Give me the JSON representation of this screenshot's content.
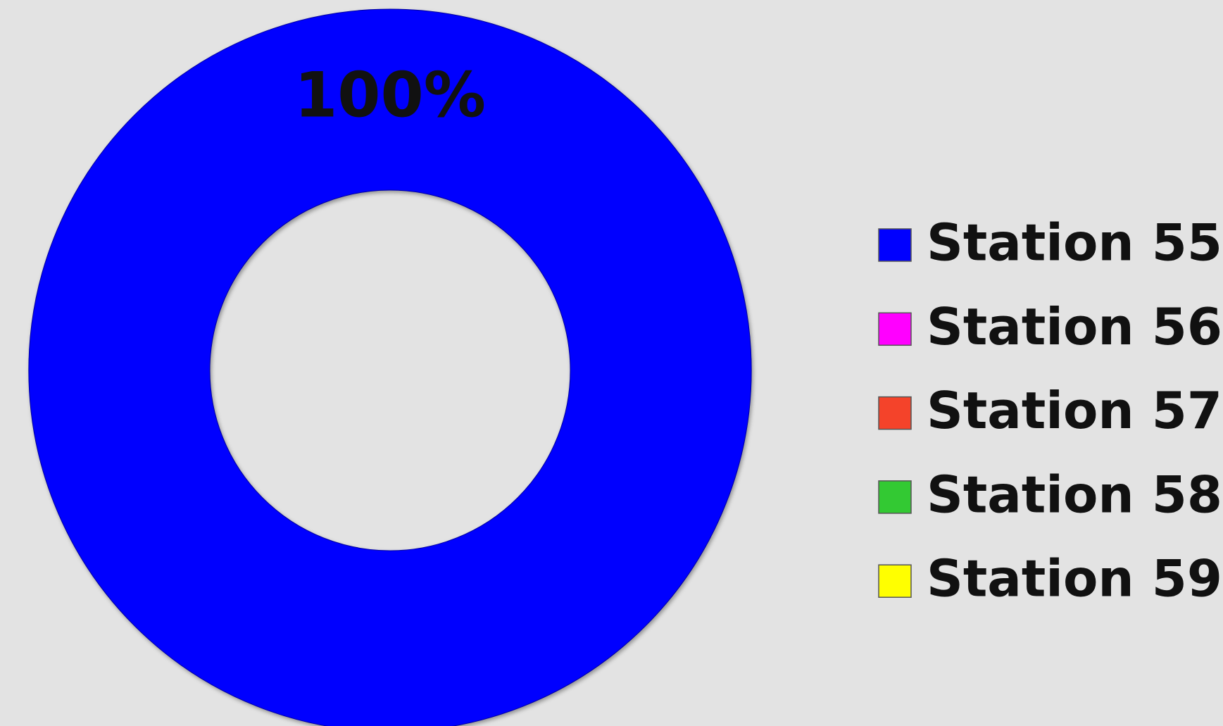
{
  "chart_data": {
    "type": "donut",
    "categories": [
      "Station 55",
      "Station 56",
      "Station 57",
      "Station 58",
      "Station 59"
    ],
    "values": [
      100,
      0,
      0,
      0,
      0
    ],
    "value_labels": [
      "100%",
      null,
      null,
      null,
      null
    ],
    "colors": [
      "#0000ff",
      "#ff00ff",
      "#f4432a",
      "#33c933",
      "#ffff00"
    ],
    "legend": "right"
  }
}
